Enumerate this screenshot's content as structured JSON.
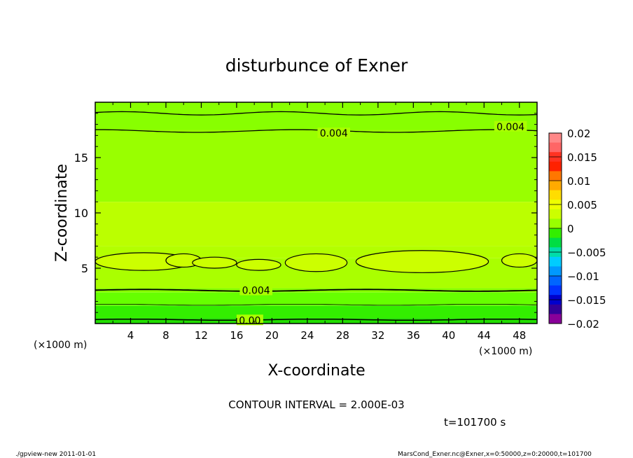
{
  "chart_data": {
    "type": "contour",
    "title": "disturbunce of Exner",
    "xlabel": "X-coordinate",
    "ylabel": "Z-coordinate",
    "x_unit_left": "(×1000 m)",
    "x_unit_right": "(×1000 m)",
    "xlim": [
      0,
      50
    ],
    "ylim": [
      0,
      20
    ],
    "x_ticks": [
      4,
      8,
      12,
      16,
      20,
      24,
      28,
      32,
      36,
      40,
      44,
      48
    ],
    "y_ticks": [
      5,
      10,
      15
    ],
    "contour_interval_text": "CONTOUR INTERVAL = 2.000E-03",
    "time_text": "t=101700 s",
    "contour_labels": [
      {
        "text": "0.004",
        "x": 27.0,
        "z": 17.2
      },
      {
        "text": "0.004",
        "x": 47.0,
        "z": 17.8
      },
      {
        "text": "0.004",
        "x": 18.2,
        "z": 3.0
      },
      {
        "text": "0.00",
        "x": 17.5,
        "z": 0.3
      }
    ],
    "fill_bands": [
      {
        "z_from": 19.4,
        "z_to": 20.0,
        "color": "#88ff00"
      },
      {
        "z_from": 17.5,
        "z_to": 19.4,
        "color": "#88ff00"
      },
      {
        "z_from": 11.0,
        "z_to": 17.5,
        "color": "#99ff00"
      },
      {
        "z_from": 7.0,
        "z_to": 11.0,
        "color": "#bbff00"
      },
      {
        "z_from": 5.9,
        "z_to": 7.0,
        "color": "#b3ff00"
      },
      {
        "z_from": 3.2,
        "z_to": 5.9,
        "color": "#aaff00"
      },
      {
        "z_from": 2.8,
        "z_to": 3.2,
        "color": "#88ff00"
      },
      {
        "z_from": 1.6,
        "z_to": 2.8,
        "color": "#66ff00"
      },
      {
        "z_from": 0.5,
        "z_to": 1.6,
        "color": "#33ee00"
      },
      {
        "z_from": 0.0,
        "z_to": 0.5,
        "color": "#22dd00"
      }
    ],
    "blobs": [
      {
        "cx": 5.5,
        "cz": 5.6,
        "rx": 5.5,
        "rz": 0.8
      },
      {
        "cx": 10.0,
        "cz": 5.7,
        "rx": 2.0,
        "rz": 0.6
      },
      {
        "cx": 13.5,
        "cz": 5.5,
        "rx": 2.5,
        "rz": 0.5
      },
      {
        "cx": 18.5,
        "cz": 5.3,
        "rx": 2.5,
        "rz": 0.5
      },
      {
        "cx": 25.0,
        "cz": 5.5,
        "rx": 3.5,
        "rz": 0.8
      },
      {
        "cx": 37.0,
        "cz": 5.6,
        "rx": 7.5,
        "rz": 1.0
      },
      {
        "cx": 48.0,
        "cz": 5.7,
        "rx": 2.0,
        "rz": 0.6
      }
    ],
    "colorbar": {
      "labels": [
        "0.02",
        "0.015",
        "0.01",
        "0.005",
        "0",
        "−0.005",
        "−0.01",
        "−0.015",
        "−0.02"
      ],
      "colors": [
        "#ff8888",
        "#ff6666",
        "#ff3322",
        "#ff2200",
        "#ff7700",
        "#ffaa00",
        "#ffdd00",
        "#eeff00",
        "#ccff00",
        "#99ff00",
        "#33ee00",
        "#00dd44",
        "#00ddaa",
        "#00ccff",
        "#0099ff",
        "#0066ff",
        "#0033ff",
        "#0000cc",
        "#330099",
        "#880099"
      ]
    }
  },
  "footer": {
    "left": "./gpview-new  2011-01-01",
    "right": "MarsCond_Exner.nc@Exner,x=0:50000,z=0:20000,t=101700"
  }
}
